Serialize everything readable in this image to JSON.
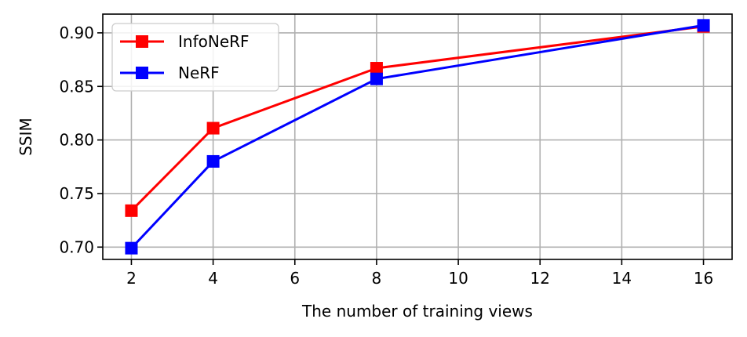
{
  "chart_data": {
    "type": "line",
    "title": "",
    "xlabel": "The number of training views",
    "ylabel": "SSIM",
    "x": [
      2,
      4,
      8,
      16
    ],
    "xlim": [
      1.3,
      16.7
    ],
    "ylim": [
      0.6885,
      0.9175
    ],
    "xticks": [
      2,
      4,
      6,
      8,
      10,
      12,
      14,
      16
    ],
    "yticks": [
      0.7,
      0.75,
      0.8,
      0.85,
      0.9
    ],
    "ytick_labels": [
      "0.70",
      "0.75",
      "0.80",
      "0.85",
      "0.90"
    ],
    "grid": true,
    "legend_position": "top-left",
    "series": [
      {
        "name": "InfoNeRF",
        "color": "#ff0000",
        "marker": "square",
        "values": [
          0.734,
          0.811,
          0.867,
          0.906
        ]
      },
      {
        "name": "NeRF",
        "color": "#0000ff",
        "marker": "square",
        "values": [
          0.699,
          0.78,
          0.857,
          0.907
        ]
      }
    ]
  }
}
